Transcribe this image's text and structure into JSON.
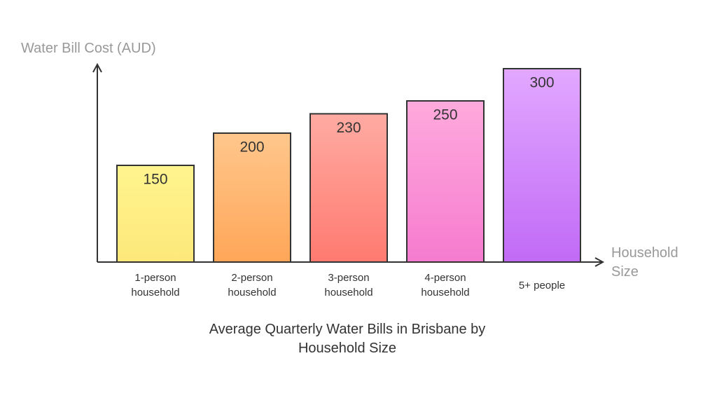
{
  "chart_data": {
    "type": "bar",
    "title": "Average Quarterly Water Bills in Brisbane by Household Size",
    "y_label": "Water Bill Cost (AUD)",
    "x_label": "Household Size",
    "categories": [
      "1-person household",
      "2-person household",
      "3-person household",
      "4-person household",
      "5+ people"
    ],
    "values": [
      150,
      200,
      230,
      250,
      300
    ],
    "colors": [
      [
        "#fef48e",
        "#fde87a"
      ],
      [
        "#ffc78c",
        "#ffa658"
      ],
      [
        "#ffaba2",
        "#ff7a70"
      ],
      [
        "#ffaadd",
        "#f67bcf"
      ],
      [
        "#e2a8ff",
        "#c16af6"
      ]
    ],
    "ylim": [
      0,
      300
    ]
  }
}
